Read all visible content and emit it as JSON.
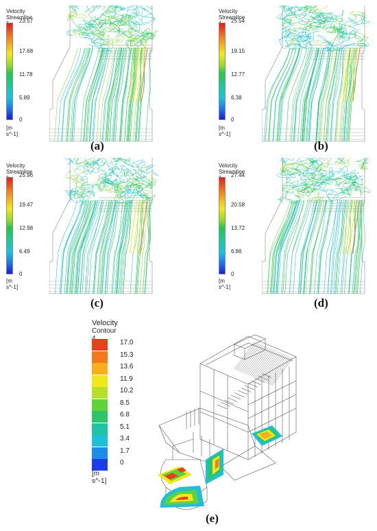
{
  "panels": [
    {
      "id": "a",
      "legend_title_1": "Velocity",
      "legend_title_2": "Streamline 1",
      "ticks": [
        "23.57",
        "17.68",
        "11.78",
        "5.89",
        "0"
      ],
      "unit": "[m s^-1]",
      "caption": "(a)"
    },
    {
      "id": "b",
      "legend_title_1": "Velocity",
      "legend_title_2": "Streamline 1",
      "ticks": [
        "25.54",
        "19.15",
        "12.77",
        "6.38",
        "0"
      ],
      "unit": "[m s^-1]",
      "caption": "(b)"
    },
    {
      "id": "c",
      "legend_title_1": "Velocity",
      "legend_title_2": "Streamline 1",
      "ticks": [
        "25.96",
        "19.47",
        "12.98",
        "6.49",
        "0"
      ],
      "unit": "[m s^-1]",
      "caption": "(c)"
    },
    {
      "id": "d",
      "legend_title_1": "Velocity",
      "legend_title_2": "Streamline 1",
      "ticks": [
        "27.44",
        "20.58",
        "13.72",
        "6.86",
        "0"
      ],
      "unit": "[m s^-1]",
      "caption": "(d)"
    }
  ],
  "contour": {
    "legend_title_1": "Velocity",
    "legend_title_2": "Contour 4",
    "ticks": [
      "17.0",
      "15.3",
      "13.6",
      "11.9",
      "10.2",
      "8.5",
      "6.8",
      "5.1",
      "3.4",
      "1.7",
      "0"
    ],
    "unit": "[m s^-1]",
    "caption": "(e)",
    "swatch_colors": [
      "#e8401c",
      "#f07a1c",
      "#f5b01c",
      "#f0e81c",
      "#b8e02a",
      "#5fd23c",
      "#2fc36a",
      "#22c2a8",
      "#1ebfd8",
      "#1e8de8",
      "#1c3ce8"
    ]
  },
  "colormap": [
    "#e21f1f",
    "#f5821e",
    "#f2ea1c",
    "#8bd82c",
    "#22c84a",
    "#1ec9a0",
    "#1bc0e6",
    "#1b70e8",
    "#1b1bd8"
  ]
}
